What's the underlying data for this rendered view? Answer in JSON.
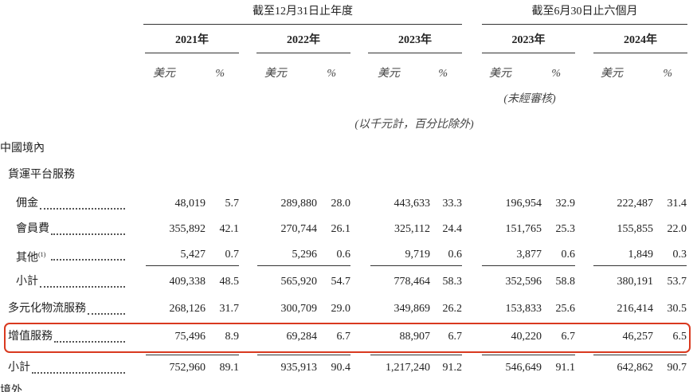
{
  "header": {
    "annual_group": "截至12月31日止年度",
    "interim_group": "截至6月30日止六個月",
    "years": [
      "2021年",
      "2022年",
      "2023年",
      "2023年",
      "2024年"
    ],
    "units": [
      "美元",
      "%",
      "美元",
      "%",
      "美元",
      "%",
      "美元",
      "%",
      "美元",
      "%"
    ],
    "unaudited": "(未經審核)",
    "note": "(以千元計，百分比除外)"
  },
  "table": {
    "rows": [
      {
        "label": "中國境內",
        "level": 0,
        "values": []
      },
      {
        "label": "貨運平台服務",
        "level": 1,
        "values": []
      },
      {
        "label": "佣金",
        "level": 2,
        "values": [
          "48,019",
          "5.7",
          "289,880",
          "28.0",
          "443,633",
          "33.3",
          "196,954",
          "32.9",
          "222,487",
          "31.4"
        ]
      },
      {
        "label": "會員費",
        "level": 2,
        "values": [
          "355,892",
          "42.1",
          "270,744",
          "26.1",
          "325,112",
          "24.4",
          "151,765",
          "25.3",
          "155,855",
          "22.0"
        ]
      },
      {
        "label": "其他",
        "footnote": "(1)",
        "level": 2,
        "values": [
          "5,427",
          "0.7",
          "5,296",
          "0.6",
          "9,719",
          "0.6",
          "3,877",
          "0.6",
          "1,849",
          "0.3"
        ]
      },
      {
        "label": "小計",
        "level": 2,
        "values": [
          "409,338",
          "48.5",
          "565,920",
          "54.7",
          "778,464",
          "58.3",
          "352,596",
          "58.8",
          "380,191",
          "53.7"
        ]
      },
      {
        "label": "多元化物流服務",
        "level": 1,
        "values": [
          "268,126",
          "31.7",
          "300,709",
          "29.0",
          "349,869",
          "26.2",
          "153,833",
          "25.6",
          "216,414",
          "30.5"
        ]
      },
      {
        "label": "增值服務",
        "level": 1,
        "values": [
          "75,496",
          "8.9",
          "69,284",
          "6.7",
          "88,907",
          "6.7",
          "40,220",
          "6.7",
          "46,257",
          "6.5"
        ]
      },
      {
        "label": "小計",
        "level": 1,
        "values": [
          "752,960",
          "89.1",
          "935,913",
          "90.4",
          "1,217,240",
          "91.2",
          "546,649",
          "91.1",
          "642,862",
          "90.7"
        ]
      },
      {
        "label": "境外",
        "level": 0,
        "values": []
      }
    ]
  }
}
